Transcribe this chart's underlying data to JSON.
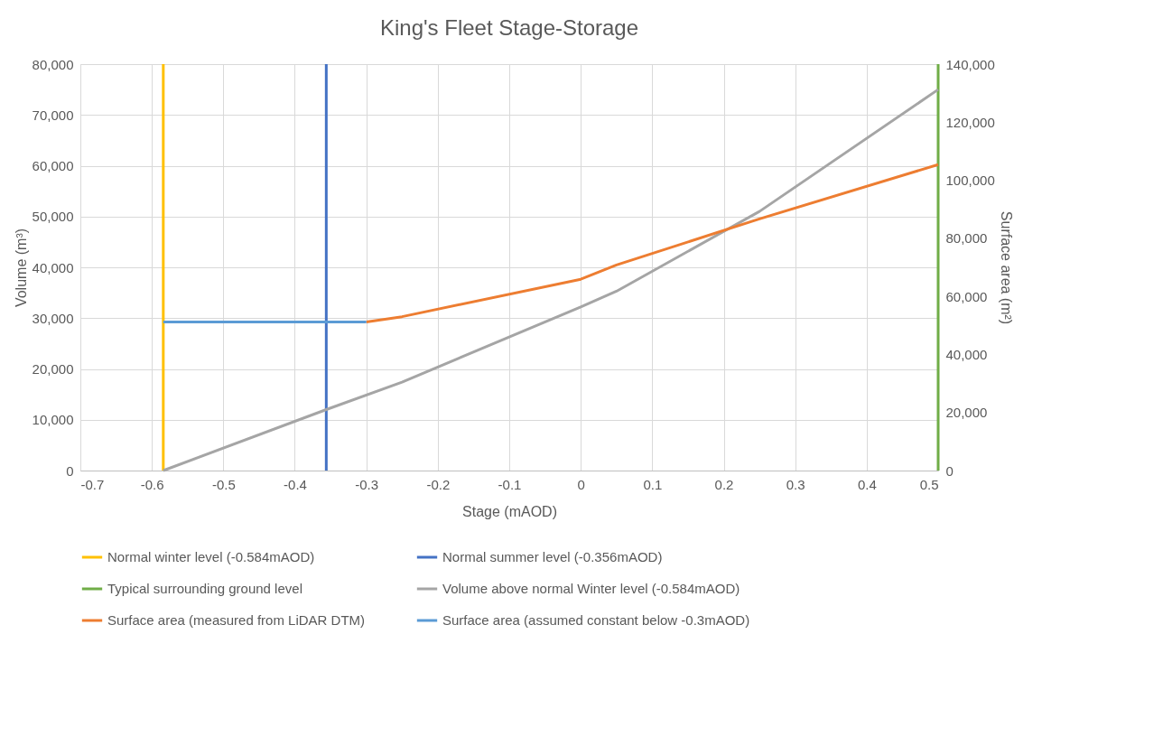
{
  "chart_data": {
    "type": "line",
    "title": "King's Fleet Stage-Storage",
    "xlabel": "Stage (mAOD)",
    "ylabel": "Volume (m³)",
    "y2label": "Surface area (m²)",
    "xlim": [
      -0.7,
      0.5
    ],
    "xticks": [
      -0.7,
      -0.6,
      -0.5,
      -0.4,
      -0.3,
      -0.2,
      -0.1,
      0,
      0.1,
      0.2,
      0.3,
      0.4,
      0.5
    ],
    "ylim": [
      0,
      80000
    ],
    "yticks": [
      0,
      {
        "value": 10000,
        "label": "10,000"
      },
      {
        "value": 20000,
        "label": "20,000"
      },
      {
        "value": 30000,
        "label": "30,000"
      },
      {
        "value": 40000,
        "label": "40,000"
      },
      {
        "value": 50000,
        "label": "50,000"
      },
      {
        "value": 60000,
        "label": "60,000"
      },
      {
        "value": 70000,
        "label": "70,000"
      },
      {
        "value": 80000,
        "label": "80,000"
      }
    ],
    "y2lim": [
      0,
      140000
    ],
    "y2ticks": [
      0,
      {
        "value": 20000,
        "label": "20,000"
      },
      {
        "value": 40000,
        "label": "40,000"
      },
      {
        "value": 60000,
        "label": "60,000"
      },
      {
        "value": 80000,
        "label": "80,000"
      },
      {
        "value": 100000,
        "label": "100,000"
      },
      {
        "value": 120000,
        "label": "120,000"
      },
      {
        "value": 140000,
        "label": "140,000"
      }
    ],
    "grid": true,
    "legend": "bottom",
    "line_style": "solid",
    "marker": "none",
    "series": [
      {
        "name": "Normal winter level (-0.584mAOD)",
        "color": "#ffc000",
        "x": [
          -0.584,
          -0.584
        ],
        "values": [
          0,
          80000
        ]
      },
      {
        "name": "Normal summer level (-0.356mAOD)",
        "color": "#4472c4",
        "x": [
          -0.356,
          -0.356
        ],
        "values": [
          0,
          80000
        ]
      },
      {
        "name": "Typical surrounding ground level",
        "color": "#70ad47",
        "x": [
          0.5,
          0.5
        ],
        "values": [
          0,
          80000
        ]
      },
      {
        "name": "Volume above normal Winter level (-0.584mAOD)",
        "color": "#a5a5a5",
        "x": [
          -0.584,
          -0.356,
          -0.25,
          0,
          0.05,
          0.25,
          0.5
        ],
        "values": [
          0,
          12000,
          17400,
          32200,
          35300,
          51000,
          75000
        ]
      },
      {
        "name": "Surface area (measured from LiDAR DTM)",
        "color": "#ed7d31",
        "axis": "y2",
        "x": [
          -0.3,
          -0.25,
          0,
          0.05,
          0.25,
          0.5
        ],
        "values": [
          51200,
          53000,
          65900,
          70800,
          86700,
          105400
        ]
      },
      {
        "name": "Surface area (assumed constant below -0.3mAOD)",
        "color": "#5b9bd5",
        "axis": "y2",
        "x": [
          -0.584,
          -0.3
        ],
        "values": [
          51200,
          51200
        ]
      }
    ]
  }
}
